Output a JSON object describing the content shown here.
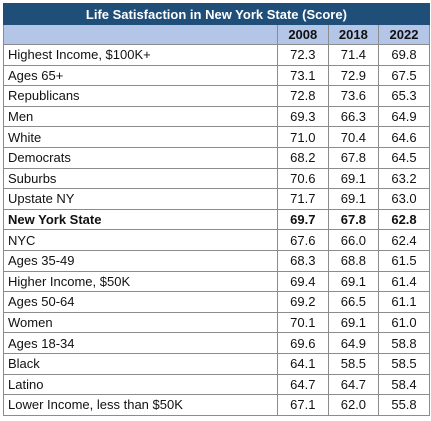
{
  "chart_data": {
    "type": "table",
    "title": "Life Satisfaction in New York State (Score)",
    "columns": [
      "2008",
      "2018",
      "2022"
    ],
    "rows": [
      {
        "label": "Highest Income, $100K+",
        "values": [
          "72.3",
          "71.4",
          "69.8"
        ],
        "bold": false
      },
      {
        "label": "Ages 65+",
        "values": [
          "73.1",
          "72.9",
          "67.5"
        ],
        "bold": false
      },
      {
        "label": "Republicans",
        "values": [
          "72.8",
          "73.6",
          "65.3"
        ],
        "bold": false
      },
      {
        "label": "Men",
        "values": [
          "69.3",
          "66.3",
          "64.9"
        ],
        "bold": false
      },
      {
        "label": "White",
        "values": [
          "71.0",
          "70.4",
          "64.6"
        ],
        "bold": false
      },
      {
        "label": "Democrats",
        "values": [
          "68.2",
          "67.8",
          "64.5"
        ],
        "bold": false
      },
      {
        "label": "Suburbs",
        "values": [
          "70.6",
          "69.1",
          "63.2"
        ],
        "bold": false
      },
      {
        "label": "Upstate NY",
        "values": [
          "71.7",
          "69.1",
          "63.0"
        ],
        "bold": false
      },
      {
        "label": "New York State",
        "values": [
          "69.7",
          "67.8",
          "62.8"
        ],
        "bold": true
      },
      {
        "label": "NYC",
        "values": [
          "67.6",
          "66.0",
          "62.4"
        ],
        "bold": false
      },
      {
        "label": "Ages 35-49",
        "values": [
          "68.3",
          "68.8",
          "61.5"
        ],
        "bold": false
      },
      {
        "label": "Higher Income, $50K",
        "values": [
          "69.4",
          "69.1",
          "61.4"
        ],
        "bold": false
      },
      {
        "label": "Ages 50-64",
        "values": [
          "69.2",
          "66.5",
          "61.1"
        ],
        "bold": false
      },
      {
        "label": "Women",
        "values": [
          "70.1",
          "69.1",
          "61.0"
        ],
        "bold": false
      },
      {
        "label": "Ages 18-34",
        "values": [
          "69.6",
          "64.9",
          "58.8"
        ],
        "bold": false
      },
      {
        "label": "Black",
        "values": [
          "64.1",
          "58.5",
          "58.5"
        ],
        "bold": false
      },
      {
        "label": "Latino",
        "values": [
          "64.7",
          "64.7",
          "58.4"
        ],
        "bold": false
      },
      {
        "label": "Lower Income, less than $50K",
        "values": [
          "67.1",
          "62.0",
          "55.8"
        ],
        "bold": false
      }
    ]
  },
  "colors": {
    "title_bg": "#1f4e79",
    "header_bg": "#b4c6e7",
    "border": "#8c8c8c"
  }
}
